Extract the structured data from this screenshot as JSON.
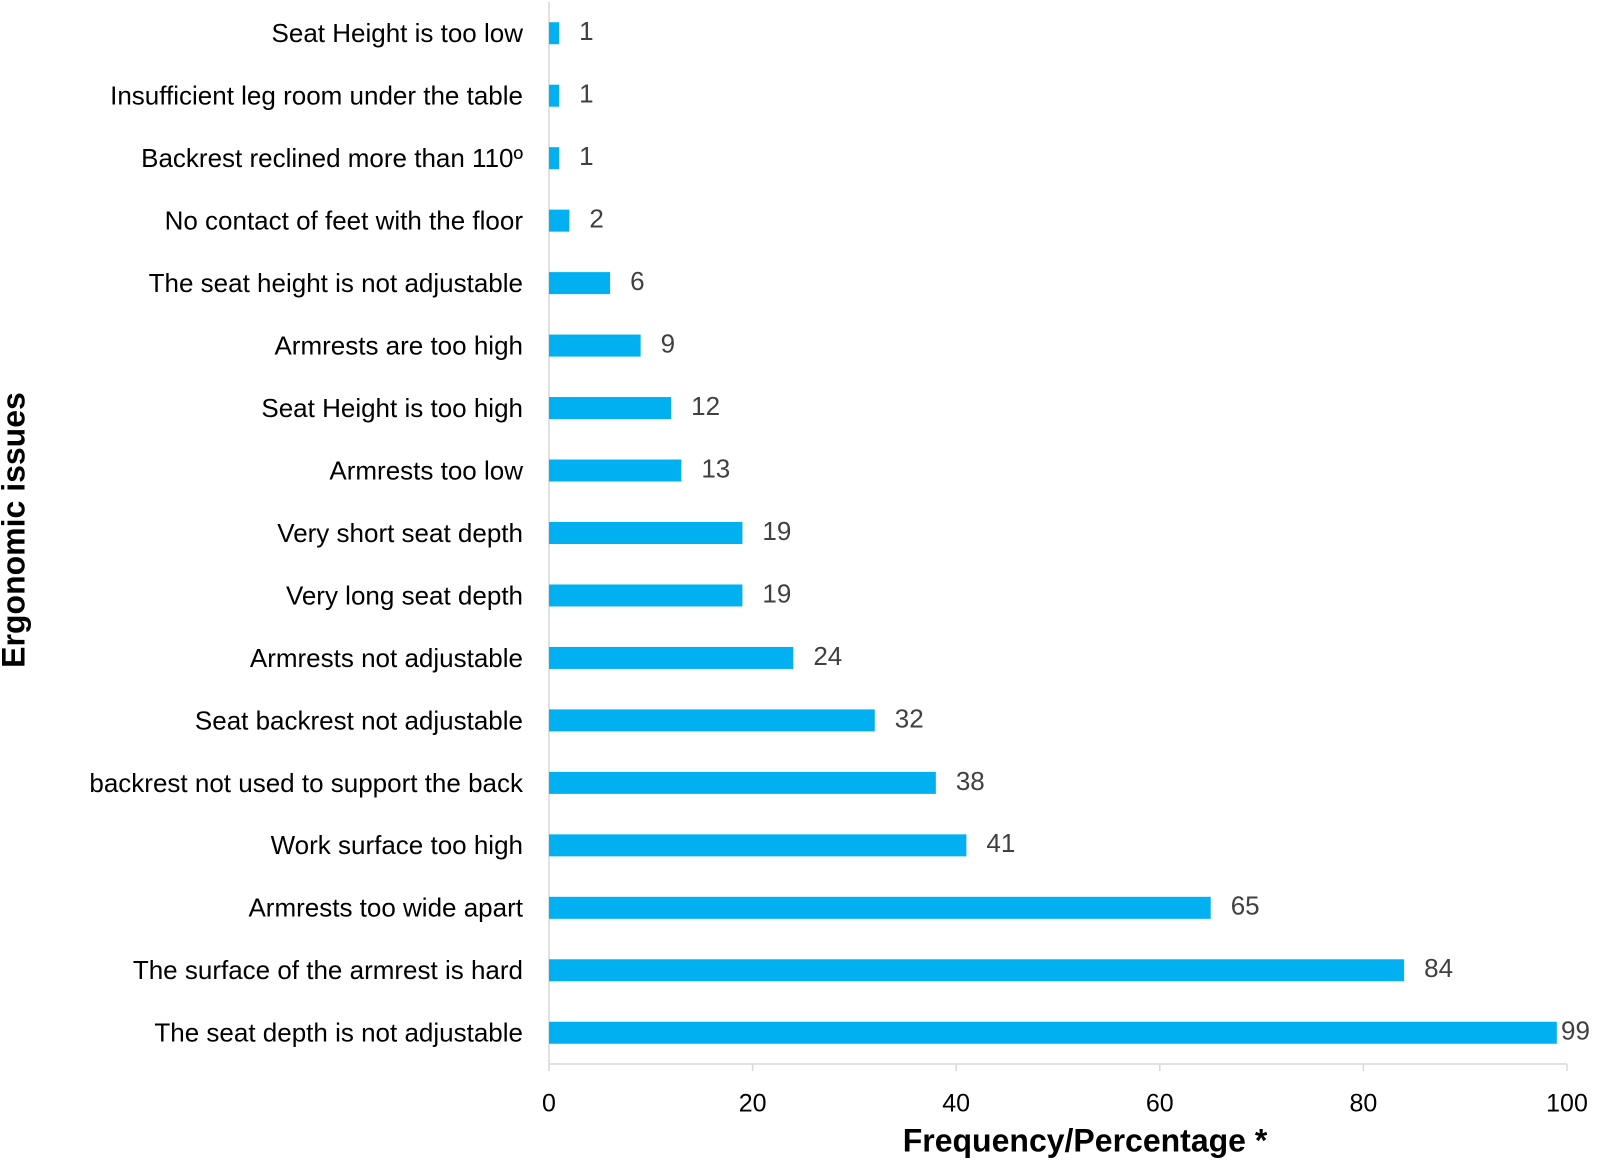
{
  "chart_data": {
    "type": "bar",
    "orientation": "horizontal",
    "x_label": "Frequency/Percentage *",
    "y_label": "Ergonomic issues",
    "categories": [
      "Seat Height is too low",
      "Insufficient leg room under the table",
      "Backrest reclined more than 110º",
      "No contact of feet with the floor",
      "The seat height is not adjustable",
      "Armrests are too high",
      "Seat Height is too high",
      "Armrests too low",
      "Very short seat depth",
      "Very long seat depth",
      "Armrests not adjustable",
      "Seat backrest not adjustable",
      "backrest not used to support the back",
      "Work surface too high",
      "Armrests too wide apart",
      "The surface of the armrest is hard",
      "The seat depth is not adjustable"
    ],
    "values": [
      1,
      1,
      1,
      2,
      6,
      9,
      12,
      13,
      19,
      19,
      24,
      32,
      38,
      41,
      65,
      84,
      99
    ],
    "color": "#00b0f0",
    "xlim": [
      0,
      100
    ],
    "xticks": [
      0,
      20,
      40,
      60,
      80,
      100
    ],
    "grid": false
  }
}
